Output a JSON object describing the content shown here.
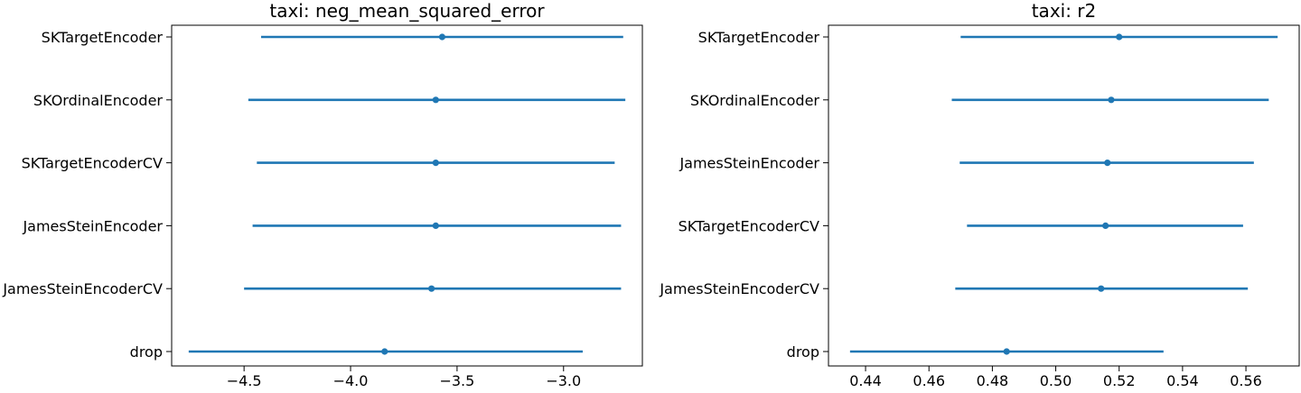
{
  "chart_data": [
    {
      "type": "errorbar",
      "title": "taxi: neg_mean_squared_error",
      "xlabel": "",
      "ylabel": "",
      "xlim": [
        -4.84,
        -2.63
      ],
      "xticks": [
        -4.5,
        -4.0,
        -3.5,
        -3.0
      ],
      "xtick_labels": [
        "−4.5",
        "−4.0",
        "−3.5",
        "−3.0"
      ],
      "categories": [
        "SKTargetEncoder",
        "SKOrdinalEncoder",
        "SKTargetEncoderCV",
        "JamesSteinEncoder",
        "JamesSteinEncoderCV",
        "drop"
      ],
      "means": [
        -3.57,
        -3.6,
        -3.6,
        -3.6,
        -3.62,
        -3.84
      ],
      "lower": [
        -4.42,
        -4.48,
        -4.44,
        -4.46,
        -4.5,
        -4.76
      ],
      "upper": [
        -2.72,
        -2.71,
        -2.76,
        -2.73,
        -2.73,
        -2.91
      ],
      "grid": false,
      "color": "#1f77b4"
    },
    {
      "type": "errorbar",
      "title": "taxi: r2",
      "xlabel": "",
      "ylabel": "",
      "xlim": [
        0.4283,
        0.5768
      ],
      "xticks": [
        0.44,
        0.46,
        0.48,
        0.5,
        0.52,
        0.54,
        0.56
      ],
      "xtick_labels": [
        "0.44",
        "0.46",
        "0.48",
        "0.50",
        "0.52",
        "0.54",
        "0.56"
      ],
      "categories": [
        "SKTargetEncoder",
        "SKOrdinalEncoder",
        "JamesSteinEncoder",
        "SKTargetEncoderCV",
        "JamesSteinEncoderCV",
        "drop"
      ],
      "means": [
        0.52,
        0.5175,
        0.5163,
        0.5157,
        0.5143,
        0.4845
      ],
      "lower": [
        0.47,
        0.4672,
        0.4697,
        0.472,
        0.4683,
        0.4351
      ],
      "upper": [
        0.57,
        0.5672,
        0.5625,
        0.5591,
        0.5606,
        0.534
      ],
      "grid": false,
      "color": "#1f77b4"
    }
  ]
}
